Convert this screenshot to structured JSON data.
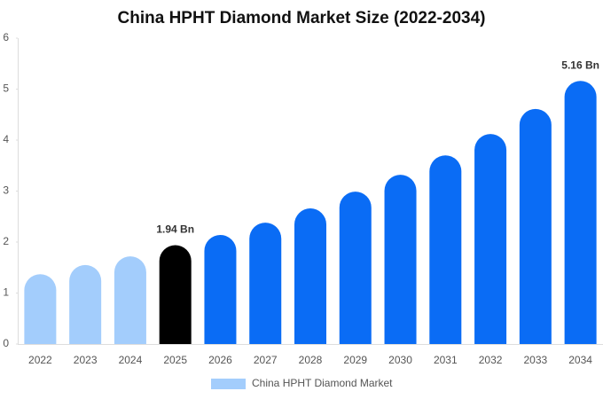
{
  "chart_data": {
    "type": "bar",
    "title": "China HPHT Diamond Market Size (2022-2034)",
    "categories": [
      "2022",
      "2023",
      "2024",
      "2025",
      "2026",
      "2027",
      "2028",
      "2029",
      "2030",
      "2031",
      "2032",
      "2033",
      "2034"
    ],
    "series": [
      {
        "name": "China HPHT Diamond Market",
        "color": "#a3cdfc",
        "colors": [
          "#a3cdfc",
          "#a3cdfc",
          "#a3cdfc",
          "#000000",
          "#0a6cf5",
          "#0a6cf5",
          "#0a6cf5",
          "#0a6cf5",
          "#0a6cf5",
          "#0a6cf5",
          "#0a6cf5",
          "#0a6cf5",
          "#0a6cf5"
        ],
        "values": [
          1.37,
          1.55,
          1.72,
          1.94,
          2.14,
          2.38,
          2.66,
          2.99,
          3.32,
          3.7,
          4.12,
          4.61,
          5.16
        ],
        "value_labels": [
          null,
          null,
          null,
          "1.94 Bn",
          null,
          null,
          null,
          null,
          null,
          null,
          null,
          null,
          "5.16 Bn"
        ]
      }
    ],
    "ylim": [
      0,
      6
    ],
    "yticks": [
      0,
      1,
      2,
      3,
      4,
      5,
      6
    ],
    "grid": false
  }
}
